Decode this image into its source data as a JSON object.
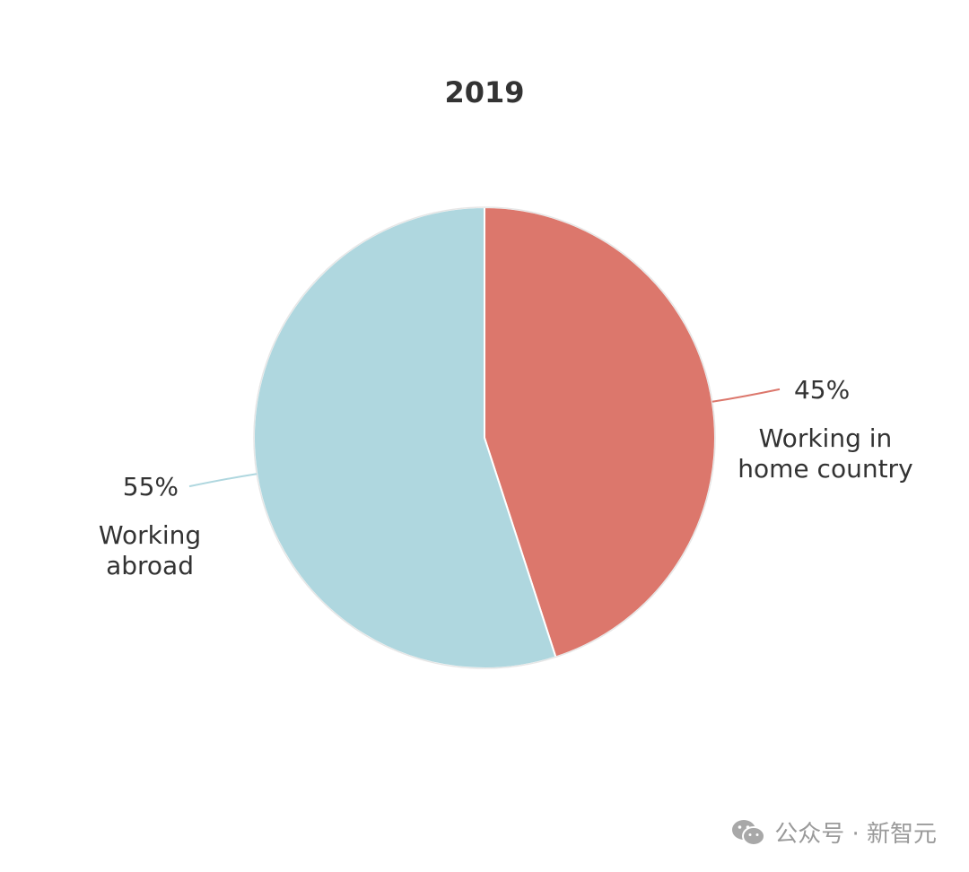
{
  "chart_data": {
    "type": "pie",
    "title": "2019",
    "slices": [
      {
        "label_lines": [
          "Working in",
          "home country"
        ],
        "percent_label": "45%",
        "value": 45,
        "color": "#dc776c"
      },
      {
        "label_lines": [
          "Working",
          "abroad"
        ],
        "percent_label": "55%",
        "value": 55,
        "color": "#afd7df"
      }
    ],
    "start_angle": "12 o'clock",
    "direction": "clockwise"
  },
  "watermark": {
    "text": "公众号 · 新智元",
    "icon": "wechat-icon"
  }
}
